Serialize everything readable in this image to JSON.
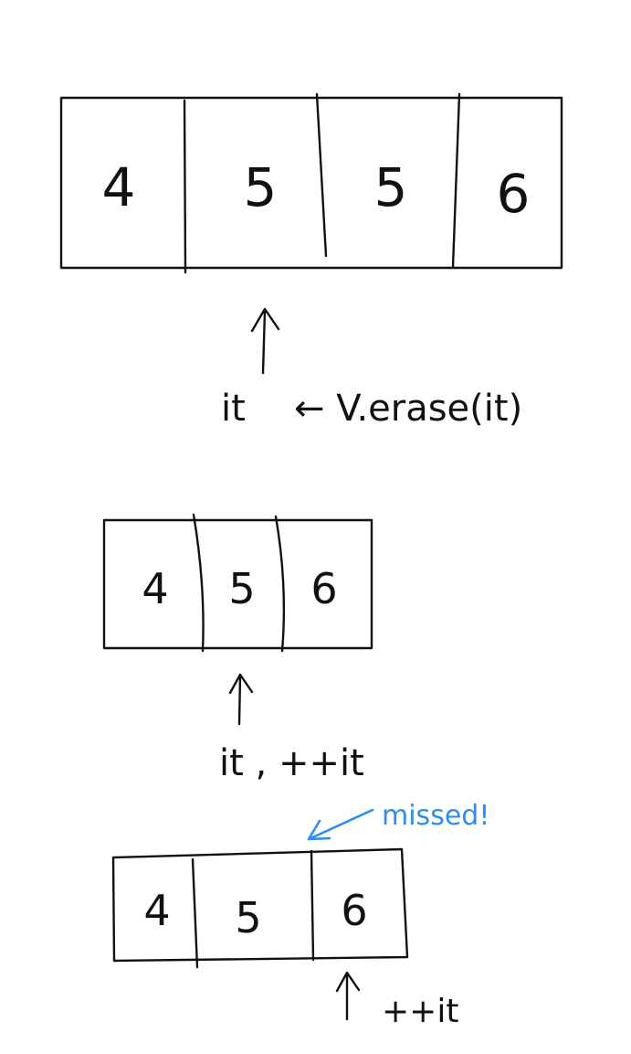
{
  "diagrams": [
    {
      "cells": [
        "4",
        "5",
        "5",
        "6"
      ],
      "pointer_label": "it",
      "call_label": "← V.erase(it)"
    },
    {
      "cells": [
        "4",
        "5",
        "6"
      ],
      "pointer_label": "it , ++it"
    },
    {
      "cells": [
        "4",
        "5",
        "6"
      ],
      "pointer_label": "++it",
      "note": "missed!"
    }
  ]
}
